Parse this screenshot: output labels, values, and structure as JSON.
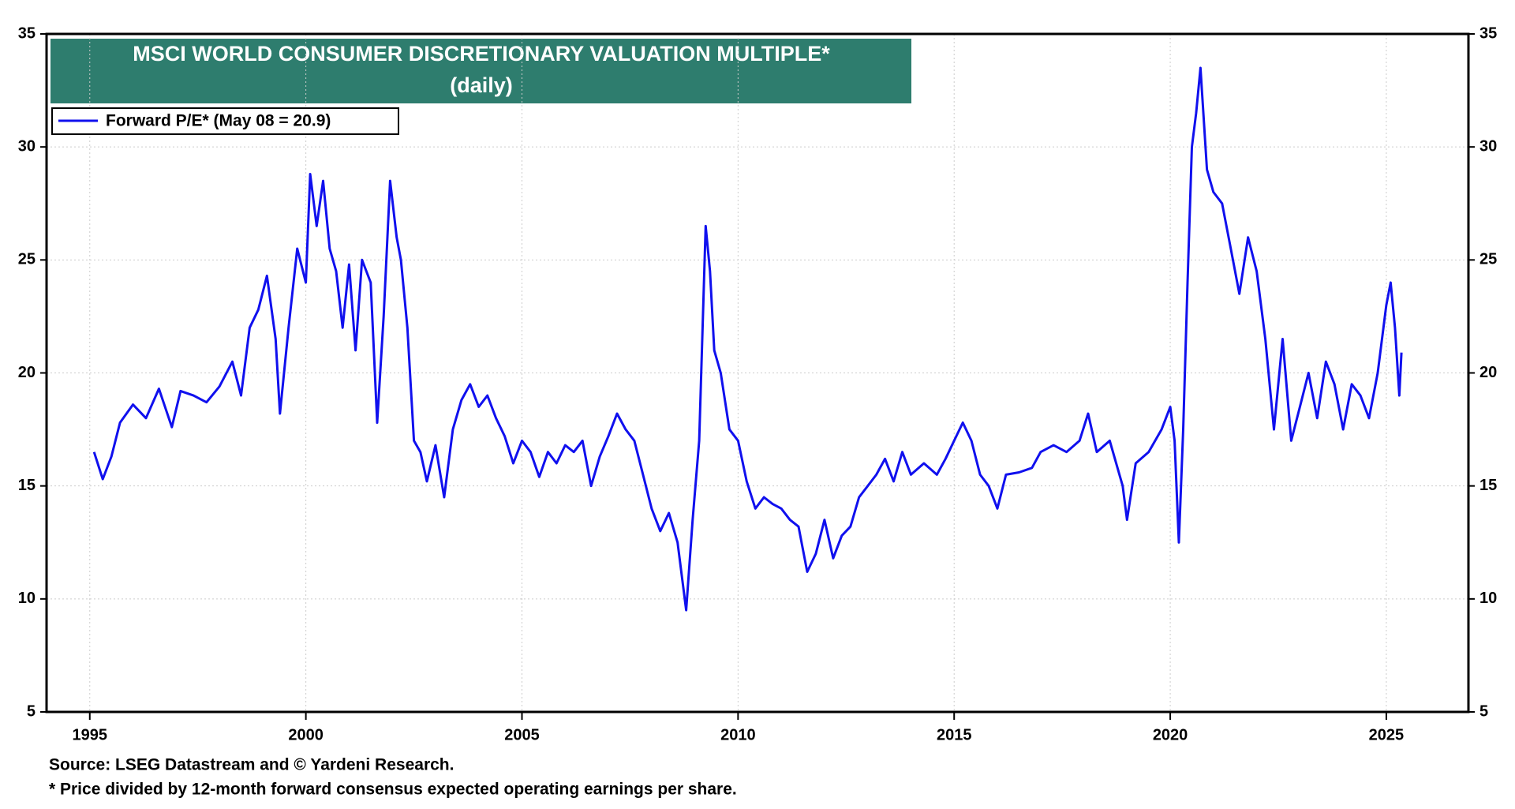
{
  "chart_data": {
    "type": "line",
    "title": "MSCI WORLD CONSUMER DISCRETIONARY VALUATION MULTIPLE*",
    "subtitle": "(daily)",
    "source": "Source: LSEG Datastream and © Yardeni Research.",
    "footnote": "* Price divided by 12-month forward consensus expected operating earnings per share.",
    "x": [
      1995.1,
      1995.3,
      1995.5,
      1995.7,
      1996.0,
      1996.3,
      1996.6,
      1996.9,
      1997.1,
      1997.4,
      1997.7,
      1998.0,
      1998.3,
      1998.5,
      1998.7,
      1998.9,
      1999.1,
      1999.3,
      1999.4,
      1999.6,
      1999.8,
      2000.0,
      2000.1,
      2000.25,
      2000.4,
      2000.55,
      2000.7,
      2000.85,
      2001.0,
      2001.15,
      2001.3,
      2001.5,
      2001.65,
      2001.8,
      2001.95,
      2002.1,
      2002.2,
      2002.35,
      2002.5,
      2002.65,
      2002.8,
      2003.0,
      2003.2,
      2003.4,
      2003.6,
      2003.8,
      2004.0,
      2004.2,
      2004.4,
      2004.6,
      2004.8,
      2005.0,
      2005.2,
      2005.4,
      2005.6,
      2005.8,
      2006.0,
      2006.2,
      2006.4,
      2006.6,
      2006.8,
      2007.0,
      2007.2,
      2007.4,
      2007.6,
      2007.8,
      2008.0,
      2008.2,
      2008.4,
      2008.6,
      2008.8,
      2008.95,
      2009.1,
      2009.25,
      2009.35,
      2009.45,
      2009.6,
      2009.8,
      2010.0,
      2010.2,
      2010.4,
      2010.6,
      2010.8,
      2011.0,
      2011.2,
      2011.4,
      2011.6,
      2011.8,
      2012.0,
      2012.2,
      2012.4,
      2012.6,
      2012.8,
      2013.0,
      2013.2,
      2013.4,
      2013.6,
      2013.8,
      2014.0,
      2014.3,
      2014.6,
      2014.8,
      2015.0,
      2015.2,
      2015.4,
      2015.6,
      2015.8,
      2016.0,
      2016.2,
      2016.5,
      2016.8,
      2017.0,
      2017.3,
      2017.6,
      2017.9,
      2018.1,
      2018.3,
      2018.6,
      2018.9,
      2019.0,
      2019.2,
      2019.5,
      2019.8,
      2020.0,
      2020.1,
      2020.2,
      2020.3,
      2020.4,
      2020.5,
      2020.6,
      2020.7,
      2020.85,
      2021.0,
      2021.2,
      2021.4,
      2021.6,
      2021.8,
      2022.0,
      2022.2,
      2022.4,
      2022.6,
      2022.8,
      2023.0,
      2023.2,
      2023.4,
      2023.6,
      2023.8,
      2024.0,
      2024.2,
      2024.4,
      2024.6,
      2024.8,
      2025.0,
      2025.1,
      2025.2,
      2025.3,
      2025.35
    ],
    "series": [
      {
        "name": "Forward P/E* (May 08 = 20.9)",
        "color": "#1010ee",
        "values": [
          16.5,
          15.3,
          16.3,
          17.8,
          18.6,
          18.0,
          19.3,
          17.6,
          19.2,
          19.0,
          18.7,
          19.4,
          20.5,
          19.0,
          22.0,
          22.8,
          24.3,
          21.5,
          18.2,
          22.0,
          25.5,
          24.0,
          28.8,
          26.5,
          28.5,
          25.5,
          24.5,
          22.0,
          24.8,
          21.0,
          25.0,
          24.0,
          17.8,
          22.5,
          28.5,
          26.0,
          25.0,
          22.0,
          17.0,
          16.5,
          15.2,
          16.8,
          14.5,
          17.5,
          18.8,
          19.5,
          18.5,
          19.0,
          18.0,
          17.2,
          16.0,
          17.0,
          16.5,
          15.4,
          16.5,
          16.0,
          16.8,
          16.5,
          17.0,
          15.0,
          16.3,
          17.2,
          18.2,
          17.5,
          17.0,
          15.5,
          14.0,
          13.0,
          13.8,
          12.5,
          9.5,
          13.5,
          17.0,
          26.5,
          24.5,
          21.0,
          20.0,
          17.5,
          17.0,
          15.2,
          14.0,
          14.5,
          14.2,
          14.0,
          13.5,
          13.2,
          11.2,
          12.0,
          13.5,
          11.8,
          12.8,
          13.2,
          14.5,
          15.0,
          15.5,
          16.2,
          15.2,
          16.5,
          15.5,
          16.0,
          15.5,
          16.2,
          17.0,
          17.8,
          17.0,
          15.5,
          15.0,
          14.0,
          15.5,
          15.6,
          15.8,
          16.5,
          16.8,
          16.5,
          17.0,
          18.2,
          16.5,
          17.0,
          15.0,
          13.5,
          16.0,
          16.5,
          17.5,
          18.5,
          17.0,
          12.5,
          17.5,
          24.0,
          30.0,
          31.5,
          33.5,
          29.0,
          28.0,
          27.5,
          25.5,
          23.5,
          26.0,
          24.5,
          21.5,
          17.5,
          21.5,
          17.0,
          18.5,
          20.0,
          18.0,
          20.5,
          19.5,
          17.5,
          19.5,
          19.0,
          18.0,
          20.0,
          23.0,
          24.0,
          22.0,
          19.0,
          20.9
        ]
      }
    ],
    "xlim": [
      1994,
      2026.9
    ],
    "xticks": [
      1995,
      2000,
      2005,
      2010,
      2015,
      2020,
      2025
    ],
    "ylim": [
      5,
      35
    ],
    "yticks": [
      5,
      10,
      15,
      20,
      25,
      30,
      35
    ],
    "y2lim": [
      5,
      35
    ],
    "y2ticks": [
      5,
      10,
      15,
      20,
      25,
      30,
      35
    ],
    "grid": true,
    "legend": "upper left",
    "title_color": "#2e7d6e"
  }
}
